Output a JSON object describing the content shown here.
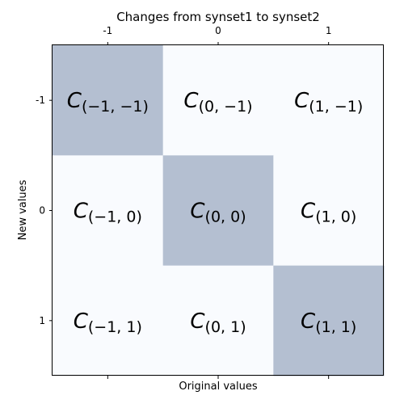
{
  "chart_data": {
    "type": "heatmap",
    "title": "Changes from synset1 to synset2",
    "xlabel": "Original values",
    "ylabel": "New values",
    "x_ticks": [
      "-1",
      "0",
      "1"
    ],
    "y_ticks": [
      "-1",
      "0",
      "1"
    ],
    "x_tick_position": "top",
    "grid": false,
    "highlight_color": "#b4bfd1",
    "base_color": "#f9fbfe",
    "cells": [
      {
        "col": 0,
        "row": 0,
        "label": "C(−1, −1)",
        "value": 1
      },
      {
        "col": 1,
        "row": 0,
        "label": "C(0, −1)",
        "value": 0
      },
      {
        "col": 2,
        "row": 0,
        "label": "C(1, −1)",
        "value": 0
      },
      {
        "col": 0,
        "row": 1,
        "label": "C(−1, 0)",
        "value": 0
      },
      {
        "col": 1,
        "row": 1,
        "label": "C(0, 0)",
        "value": 1
      },
      {
        "col": 2,
        "row": 1,
        "label": "C(1, 0)",
        "value": 0
      },
      {
        "col": 0,
        "row": 2,
        "label": "C(−1, 1)",
        "value": 0
      },
      {
        "col": 1,
        "row": 2,
        "label": "C(0, 1)",
        "value": 0
      },
      {
        "col": 2,
        "row": 2,
        "label": "C(1, 1)",
        "value": 1
      }
    ]
  }
}
